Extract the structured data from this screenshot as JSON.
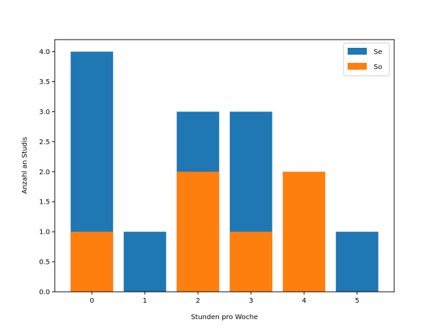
{
  "chart_data": {
    "type": "bar",
    "overlay": true,
    "categories": [
      "0",
      "1",
      "2",
      "3",
      "4",
      "5"
    ],
    "x": [
      0,
      1,
      2,
      3,
      4,
      5
    ],
    "series": [
      {
        "name": "Se",
        "values": [
          4,
          1,
          3,
          3,
          0,
          1
        ],
        "color": "#1f77b4"
      },
      {
        "name": "So",
        "values": [
          1,
          0,
          2,
          1,
          2,
          0
        ],
        "color": "#ff7f0e"
      }
    ],
    "xlabel": "Stunden pro Woche",
    "ylabel": "Anzahl an Studis",
    "ylim": [
      0,
      4.2
    ],
    "yticks": [
      0.0,
      0.5,
      1.0,
      1.5,
      2.0,
      2.5,
      3.0,
      3.5,
      4.0
    ],
    "ytick_labels": [
      "0.0",
      "0.5",
      "1.0",
      "1.5",
      "2.0",
      "2.5",
      "3.0",
      "3.5",
      "4.0"
    ],
    "xlim": [
      -0.7,
      5.7
    ],
    "grid": false,
    "legend_position": "top-right"
  }
}
